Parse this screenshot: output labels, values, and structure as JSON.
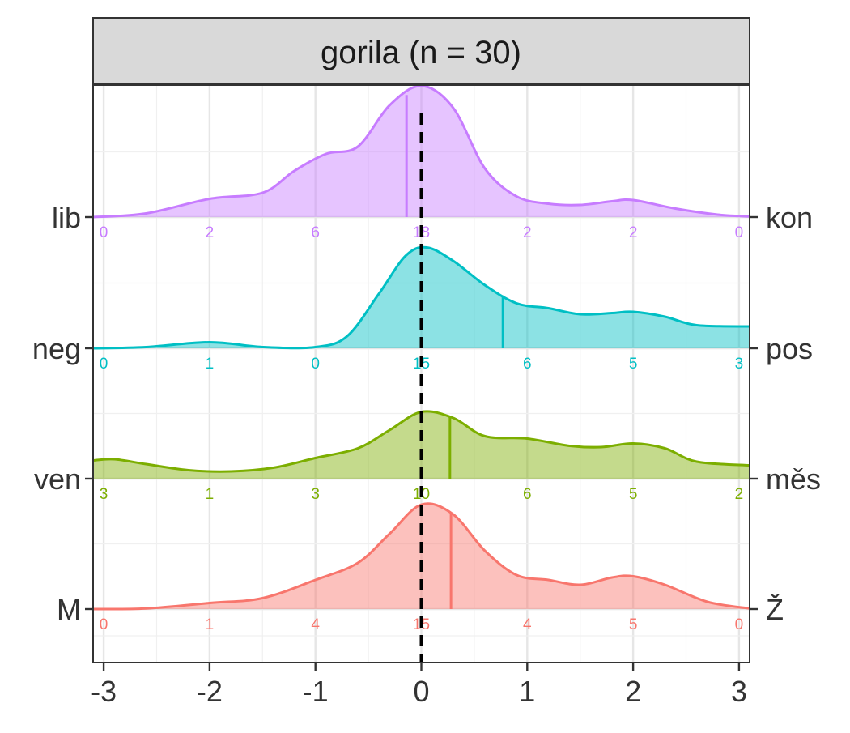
{
  "chart_data": {
    "type": "ridgeline-density",
    "panel_title": "gorila (n = 30)",
    "xlim": [
      -3.1,
      3.1
    ],
    "x_ticks": [
      -3,
      -2,
      -1,
      0,
      1,
      2,
      3
    ],
    "x_tick_labels": [
      "-3",
      "-2",
      "-1",
      "0",
      "1",
      "2",
      "3"
    ],
    "reference_line_x": 0,
    "grid": true,
    "series": [
      {
        "left_label": "M",
        "right_label": "Ž",
        "color": "#F8766D",
        "mean": 0.28,
        "counts": [
          "0",
          "1",
          "4",
          "15",
          "4",
          "5",
          "0"
        ],
        "density": [
          [
            -3.1,
            0
          ],
          [
            -2.6,
            0.005
          ],
          [
            -2.0,
            0.05
          ],
          [
            -1.5,
            0.09
          ],
          [
            -1.0,
            0.24
          ],
          [
            -0.6,
            0.38
          ],
          [
            -0.3,
            0.62
          ],
          [
            0,
            0.86
          ],
          [
            0.3,
            0.78
          ],
          [
            0.6,
            0.48
          ],
          [
            0.9,
            0.28
          ],
          [
            1.2,
            0.24
          ],
          [
            1.5,
            0.2
          ],
          [
            1.8,
            0.26
          ],
          [
            2.0,
            0.27
          ],
          [
            2.3,
            0.2
          ],
          [
            2.7,
            0.06
          ],
          [
            3.1,
            0.005
          ]
        ]
      },
      {
        "left_label": "ven",
        "right_label": "měs",
        "color": "#7CAE00",
        "mean": 0.27,
        "counts": [
          "3",
          "1",
          "3",
          "10",
          "6",
          "5",
          "2"
        ],
        "density": [
          [
            -3.1,
            0.15
          ],
          [
            -2.9,
            0.16
          ],
          [
            -2.6,
            0.12
          ],
          [
            -2.2,
            0.07
          ],
          [
            -1.8,
            0.06
          ],
          [
            -1.4,
            0.09
          ],
          [
            -1.0,
            0.17
          ],
          [
            -0.6,
            0.25
          ],
          [
            -0.3,
            0.4
          ],
          [
            0,
            0.55
          ],
          [
            0.3,
            0.5
          ],
          [
            0.6,
            0.35
          ],
          [
            1.0,
            0.33
          ],
          [
            1.4,
            0.27
          ],
          [
            1.7,
            0.26
          ],
          [
            2.0,
            0.29
          ],
          [
            2.3,
            0.25
          ],
          [
            2.6,
            0.14
          ],
          [
            3.1,
            0.11
          ]
        ]
      },
      {
        "left_label": "neg",
        "right_label": "pos",
        "color": "#00BFC4",
        "mean": 0.77,
        "counts": [
          "0",
          "1",
          "0",
          "15",
          "6",
          "5",
          "3"
        ],
        "density": [
          [
            -3.1,
            0
          ],
          [
            -2.6,
            0.01
          ],
          [
            -2.0,
            0.05
          ],
          [
            -1.5,
            0.01
          ],
          [
            -1.0,
            0.01
          ],
          [
            -0.7,
            0.1
          ],
          [
            -0.4,
            0.45
          ],
          [
            -0.15,
            0.76
          ],
          [
            0.05,
            0.83
          ],
          [
            0.3,
            0.72
          ],
          [
            0.6,
            0.52
          ],
          [
            0.9,
            0.37
          ],
          [
            1.2,
            0.33
          ],
          [
            1.5,
            0.28
          ],
          [
            1.8,
            0.29
          ],
          [
            2.0,
            0.3
          ],
          [
            2.3,
            0.26
          ],
          [
            2.6,
            0.19
          ],
          [
            3.1,
            0.18
          ]
        ]
      },
      {
        "left_label": "lib",
        "right_label": "kon",
        "color": "#C77CFF",
        "mean": -0.14,
        "counts": [
          "0",
          "2",
          "6",
          "18",
          "2",
          "2",
          "0"
        ],
        "density": [
          [
            -3.1,
            0
          ],
          [
            -2.6,
            0.03
          ],
          [
            -2.0,
            0.15
          ],
          [
            -1.5,
            0.2
          ],
          [
            -1.2,
            0.38
          ],
          [
            -0.9,
            0.52
          ],
          [
            -0.6,
            0.58
          ],
          [
            -0.3,
            0.92
          ],
          [
            0,
            1.08
          ],
          [
            0.3,
            0.9
          ],
          [
            0.6,
            0.4
          ],
          [
            0.9,
            0.17
          ],
          [
            1.2,
            0.11
          ],
          [
            1.5,
            0.1
          ],
          [
            1.8,
            0.13
          ],
          [
            2.0,
            0.14
          ],
          [
            2.4,
            0.07
          ],
          [
            2.8,
            0.02
          ],
          [
            3.1,
            0.005
          ]
        ]
      }
    ]
  }
}
